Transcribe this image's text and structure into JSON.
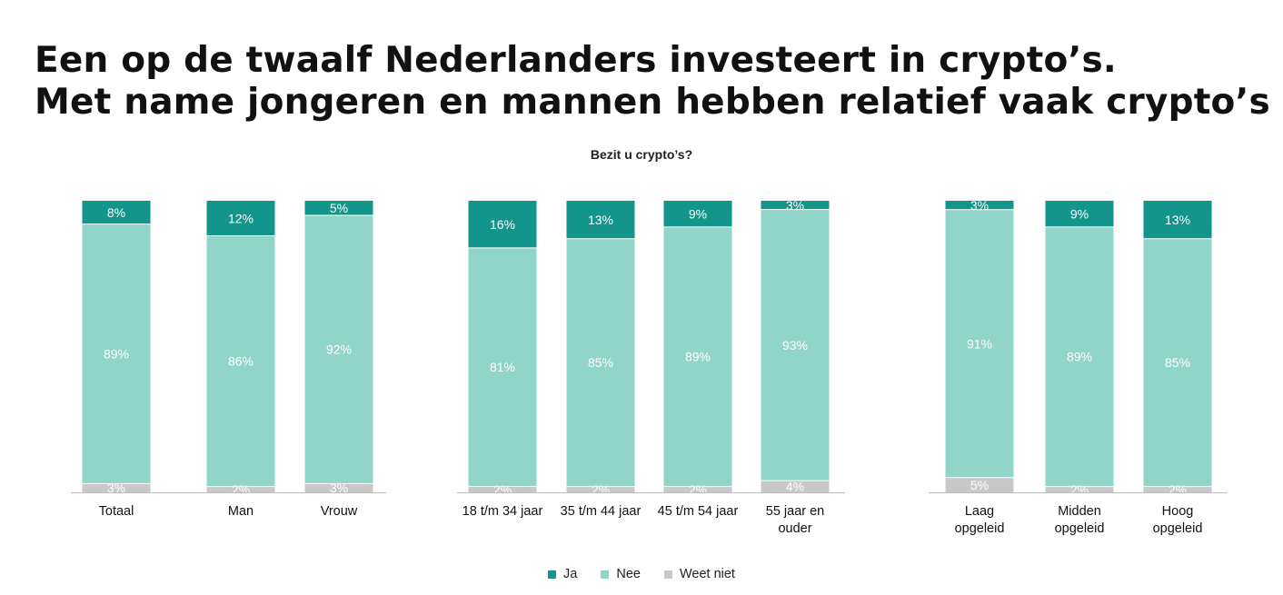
{
  "title_line1": "Een op de twaalf Nederlanders investeert in crypto’s.",
  "title_line2": "Met name jongeren en mannen hebben relatief vaak crypto’s",
  "colors": {
    "ja": "#13958c",
    "nee": "#91d4c8",
    "weet_niet": "#c8c8c8"
  },
  "legend": [
    {
      "label": "Ja",
      "color": "#13958c"
    },
    {
      "label": "Nee",
      "color": "#91d4c8"
    },
    {
      "label": "Weet niet",
      "color": "#c8c8c8"
    }
  ],
  "chart_data": {
    "type": "bar",
    "stacked": true,
    "title": "Bezit u crypto’s?",
    "legend_position": "bottom",
    "groups": [
      {
        "categories": [
          [
            "Totaal"
          ],
          [
            "Man"
          ],
          [
            "Vrouw"
          ]
        ]
      },
      {
        "categories": [
          [
            "18 t/m 34 jaar"
          ],
          [
            "35 t/m 44 jaar"
          ],
          [
            "45 t/m 54 jaar"
          ],
          [
            "55 jaar en",
            "ouder"
          ]
        ]
      },
      {
        "categories": [
          [
            "Laag",
            "opgeleid"
          ],
          [
            "Midden",
            "opgeleid"
          ],
          [
            "Hoog",
            "opgeleid"
          ]
        ]
      }
    ],
    "series": [
      {
        "name": "Ja",
        "values": [
          8,
          12,
          5,
          16,
          13,
          9,
          3,
          3,
          9,
          13
        ]
      },
      {
        "name": "Nee",
        "values": [
          89,
          86,
          92,
          81,
          85,
          89,
          93,
          91,
          89,
          85
        ]
      },
      {
        "name": "Weet niet",
        "values": [
          3,
          2,
          3,
          2,
          2,
          2,
          4,
          5,
          2,
          2
        ]
      }
    ],
    "value_labels": [
      [
        "8%",
        "89%",
        "3%"
      ],
      [
        "12%",
        "86%",
        "2%"
      ],
      [
        "5%",
        "92%",
        "3%"
      ],
      [
        "16%",
        "81%",
        "2%"
      ],
      [
        "13%",
        "85%",
        "2%"
      ],
      [
        "9%",
        "89%",
        "2%"
      ],
      [
        "3%",
        "93%",
        "4%"
      ],
      [
        "3%",
        "91%",
        "5%"
      ],
      [
        "9%",
        "89%",
        "2%"
      ],
      [
        "13%",
        "85%",
        "2%"
      ]
    ],
    "ylim": [
      0,
      100
    ]
  }
}
